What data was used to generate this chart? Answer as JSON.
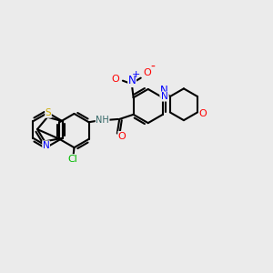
{
  "bg_color": "#ebebeb",
  "bond_color": "#000000",
  "atom_colors": {
    "N": "#0000ff",
    "O": "#ff0000",
    "S": "#ccaa00",
    "Cl": "#00bb00",
    "H": "#336666"
  },
  "bond_lw": 1.5,
  "font_size": 7.5,
  "ring_r": 0.62,
  "scale": 1.0
}
